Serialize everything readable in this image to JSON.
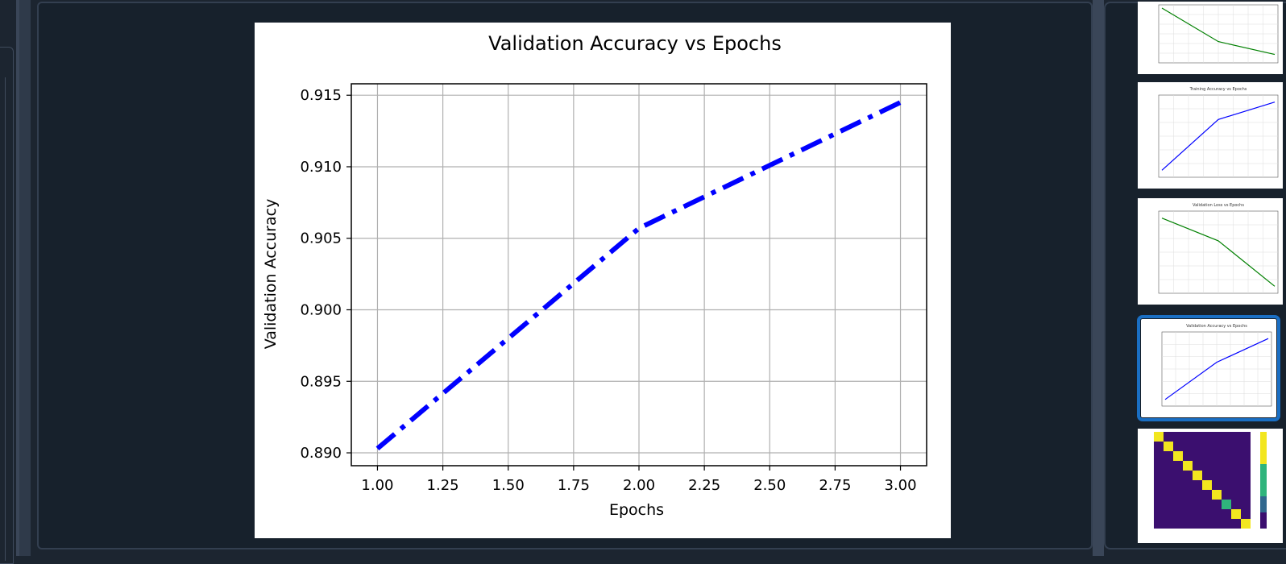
{
  "main_chart": {
    "title": "Validation Accuracy vs Epochs",
    "xlabel": "Epochs",
    "ylabel": "Validation Accuracy"
  },
  "chart_data": {
    "type": "line",
    "title": "Validation Accuracy vs Epochs",
    "xlabel": "Epochs",
    "ylabel": "Validation Accuracy",
    "x": [
      1,
      2,
      3
    ],
    "series": [
      {
        "values": [
          0.8903,
          0.9057,
          0.9145
        ],
        "color": "#0000ff",
        "linestyle": "dash-dot"
      }
    ],
    "xlim": [
      0.9,
      3.1
    ],
    "ylim": [
      0.8891,
      0.9158
    ],
    "xticks": [
      "1.00",
      "1.25",
      "1.50",
      "1.75",
      "2.00",
      "2.25",
      "2.50",
      "2.75",
      "3.00"
    ],
    "yticks": [
      "0.890",
      "0.895",
      "0.900",
      "0.905",
      "0.910",
      "0.915"
    ],
    "grid": true
  },
  "thumbnails": [
    {
      "label": "thumbnail-training-loss",
      "kind": "line",
      "color": "#008000",
      "values": [
        1.0,
        0.35,
        0.1
      ],
      "selected": false
    },
    {
      "label": "thumbnail-training-accuracy",
      "kind": "line",
      "color": "#0000ff",
      "values": [
        0.05,
        0.72,
        0.95
      ],
      "selected": false,
      "title": "Training Accuracy vs Epochs"
    },
    {
      "label": "thumbnail-validation-loss",
      "kind": "line",
      "color": "#008000",
      "values": [
        0.95,
        0.65,
        0.05
      ],
      "selected": false,
      "title": "Validation Loss vs Epochs"
    },
    {
      "label": "thumbnail-validation-accuracy",
      "kind": "line",
      "color": "#0000ff",
      "values": [
        0.05,
        0.6,
        0.95
      ],
      "selected": true,
      "title": "Validation Accuracy vs Epochs"
    },
    {
      "label": "thumbnail-confusion-matrix",
      "kind": "heatmap",
      "selected": false
    }
  ],
  "colors": {
    "background": "#1c2530",
    "panel": "#17212c",
    "accent": "#1a6fc4"
  }
}
